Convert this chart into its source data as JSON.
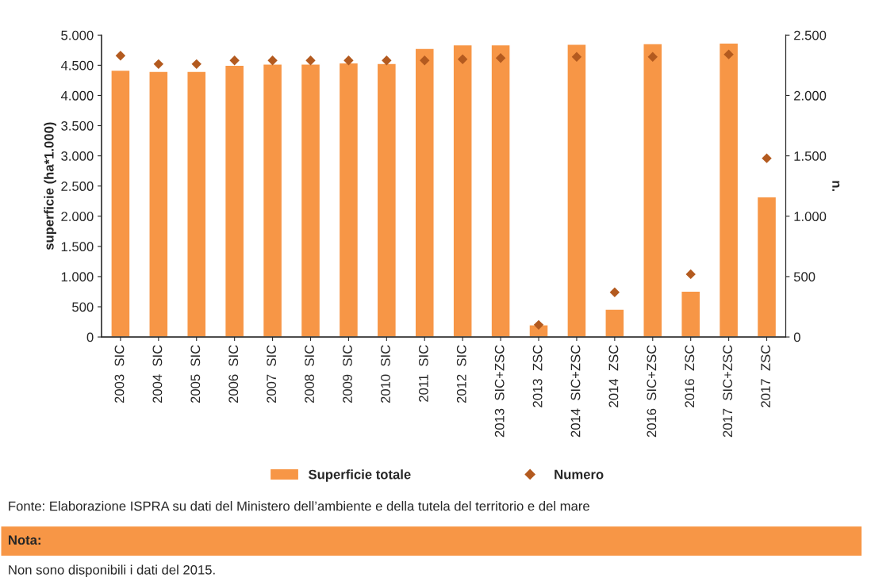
{
  "chart_data": {
    "type": "bar",
    "ylabel": "superficie (ha*1.000)",
    "y2label": "n.",
    "categories": [
      "2003  SIC",
      "2004  SIC",
      "2005  SIC",
      "2006  SIC",
      "2007  SIC",
      "2008  SIC",
      "2009  SIC",
      "2010  SIC",
      "2011  SIC",
      "2012  SIC",
      "2013  SIC+ZSC",
      "2013  ZSC",
      "2014  SIC+ZSC",
      "2014  ZSC",
      "2016  SIC+ZSC",
      "2016  ZSC",
      "2017  SIC+ZSC",
      "2017  ZSC"
    ],
    "series": [
      {
        "name": "Superficie totale",
        "color": "#f79646",
        "values": [
          4420,
          4400,
          4400,
          4500,
          4520,
          4520,
          4540,
          4530,
          4780,
          4840,
          4840,
          200,
          4850,
          460,
          4860,
          760,
          4870,
          2320
        ]
      },
      {
        "name": "Numero",
        "type": "scatter",
        "axis": "y2",
        "marker": "diamond",
        "color": "#b35a1f",
        "values": [
          2330,
          2260,
          2260,
          2290,
          2290,
          2290,
          2290,
          2290,
          2290,
          2300,
          2310,
          100,
          2320,
          370,
          2320,
          520,
          2340,
          1480
        ]
      }
    ],
    "ylim": [
      0,
      5000
    ],
    "yticks": [
      {
        "value": 0,
        "label": "0"
      },
      {
        "value": 500,
        "label": "500"
      },
      {
        "value": 1000,
        "label": "1.000"
      },
      {
        "value": 1500,
        "label": "1.500"
      },
      {
        "value": 2000,
        "label": "2.000"
      },
      {
        "value": 2500,
        "label": "2.500"
      },
      {
        "value": 3000,
        "label": "3.000"
      },
      {
        "value": 3500,
        "label": "3.500"
      },
      {
        "value": 4000,
        "label": "4.000"
      },
      {
        "value": 4500,
        "label": "4.500"
      },
      {
        "value": 5000,
        "label": "5.000"
      }
    ],
    "y2lim": [
      0,
      2500
    ],
    "y2ticks": [
      {
        "value": 0,
        "label": "0"
      },
      {
        "value": 500,
        "label": "500"
      },
      {
        "value": 1000,
        "label": "1.000"
      },
      {
        "value": 1500,
        "label": "1.500"
      },
      {
        "value": 2000,
        "label": "2.000"
      },
      {
        "value": 2500,
        "label": "2.500"
      }
    ],
    "grid": false,
    "legend": "bottom",
    "annotations": [
      "Fonte: Elaborazione ISPRA su dati del Ministero dell’ambiente e della tutela del territorio e del mare",
      "Nota:",
      "Non sono disponibili i dati del 2015."
    ]
  }
}
